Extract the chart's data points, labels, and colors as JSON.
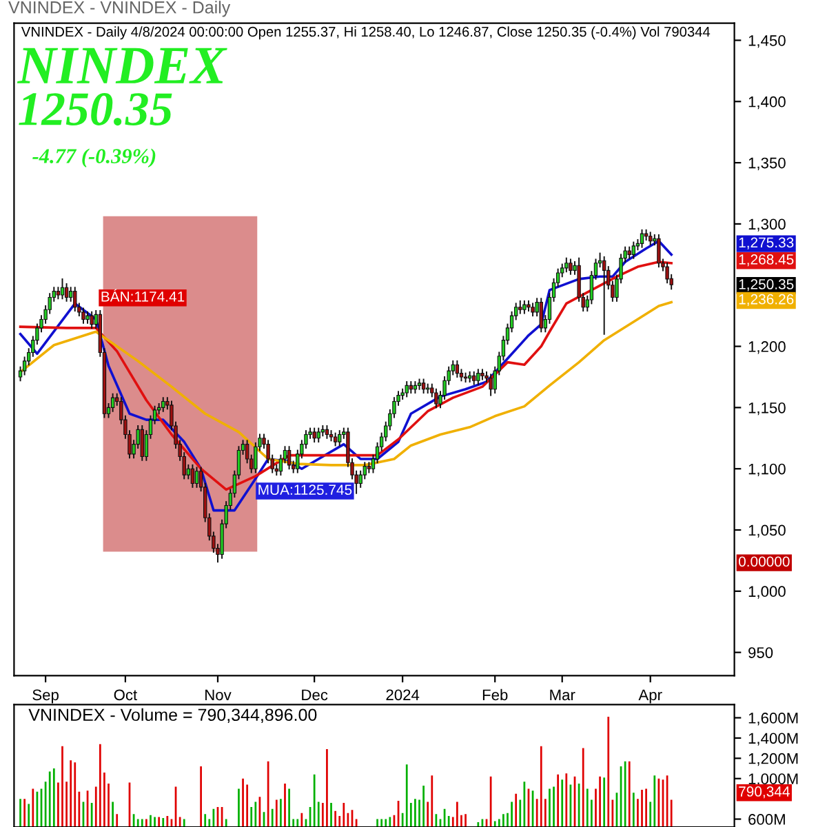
{
  "chart_data": [
    {
      "type": "candlestick",
      "title": "VNINDEX - VNINDEX - Daily",
      "subtitle": "VNINDEX - Daily 4/8/2024 00:00:00 Open 1255.37, Hi 1258.40, Lo 1246.87, Close 1250.35 (-0.4%) Vol 790344",
      "annotations": [
        "NINDEX",
        "1250.35",
        "-4.77 (-0.39%)",
        "BÁN:1174.41",
        "MUA:1125.745",
        "1,275.33",
        "1,268.45",
        "1,250.35",
        "1,236.26",
        "0.00000"
      ],
      "categories": [
        null,
        null,
        null,
        null,
        null,
        null,
        "Sep",
        null,
        null,
        null,
        null,
        null,
        null,
        null,
        null,
        null,
        null,
        null,
        null,
        null,
        null,
        null,
        null,
        null,
        null,
        "Oct",
        null,
        null,
        null,
        null,
        null,
        null,
        null,
        null,
        null,
        null,
        null,
        null,
        null,
        null,
        null,
        null,
        null,
        null,
        null,
        null,
        null,
        "Nov",
        null,
        null,
        null,
        null,
        null,
        null,
        null,
        null,
        null,
        null,
        null,
        null,
        null,
        null,
        null,
        null,
        null,
        null,
        null,
        null,
        null,
        null,
        "Dec",
        null,
        null,
        null,
        null,
        null,
        null,
        null,
        null,
        null,
        null,
        null,
        null,
        null,
        null,
        null,
        null,
        null,
        null,
        null,
        null,
        "2024",
        null,
        null,
        null,
        null,
        null,
        null,
        null,
        null,
        null,
        null,
        null,
        null,
        null,
        null,
        null,
        null,
        null,
        null,
        null,
        null,
        null,
        "Feb",
        null,
        null,
        null,
        null,
        null,
        null,
        null,
        null,
        null,
        null,
        null,
        null,
        null,
        null,
        null,
        "Mar",
        null,
        null,
        null,
        null,
        null,
        null,
        null,
        null,
        null,
        null,
        null,
        null,
        null,
        null,
        null,
        null,
        null,
        null,
        null,
        null,
        "Apr",
        null,
        null,
        null,
        null,
        null
      ],
      "ylim": [
        931,
        1464
      ],
      "yticks": [
        {
          "value": 950,
          "label": "950"
        },
        {
          "value": 1000,
          "label": "1,000"
        },
        {
          "value": 1050,
          "label": "1,050"
        },
        {
          "value": 1100,
          "label": "1,100"
        },
        {
          "value": 1150,
          "label": "1,150"
        },
        {
          "value": 1200,
          "label": "1,200"
        },
        {
          "value": 1300,
          "label": "1,300"
        },
        {
          "value": 1350,
          "label": "1,350"
        },
        {
          "value": 1400,
          "label": "1,400"
        },
        {
          "value": 1450,
          "label": "1,450"
        }
      ],
      "grid": false,
      "series": [
        {
          "type": "candlestick",
          "color": "#111111",
          "ohlc": [
            [
              1175,
              1183,
              1172,
              1180
            ],
            [
              1180,
              1191,
              1177,
              1188
            ],
            [
              1188,
              1198,
              1185,
              1195
            ],
            [
              1195,
              1208,
              1192,
              1205
            ],
            [
              1205,
              1218,
              1202,
              1215
            ],
            [
              1215,
              1225,
              1212,
              1222
            ],
            [
              1222,
              1233,
              1219,
              1230
            ],
            [
              1230,
              1243,
              1227,
              1240
            ],
            [
              1240,
              1248,
              1237,
              1245
            ],
            [
              1245,
              1248,
              1239,
              1242
            ],
            [
              1242,
              1255,
              1239,
              1248
            ],
            [
              1248,
              1251,
              1237,
              1240
            ],
            [
              1240,
              1248,
              1237,
              1245
            ],
            [
              1245,
              1248,
              1229,
              1232
            ],
            [
              1232,
              1235,
              1225,
              1228
            ],
            [
              1228,
              1231,
              1219,
              1222
            ],
            [
              1222,
              1228,
              1219,
              1225
            ],
            [
              1225,
              1228,
              1215,
              1218
            ],
            [
              1218,
              1229,
              1215,
              1226
            ],
            [
              1226,
              1229,
              1192,
              1195
            ],
            [
              1195,
              1198,
              1142,
              1145
            ],
            [
              1145,
              1153,
              1142,
              1150
            ],
            [
              1150,
              1161,
              1147,
              1158
            ],
            [
              1158,
              1161,
              1152,
              1155
            ],
            [
              1155,
              1158,
              1137,
              1140
            ],
            [
              1140,
              1143,
              1125,
              1128
            ],
            [
              1128,
              1131,
              1109,
              1112
            ],
            [
              1112,
              1123,
              1109,
              1120
            ],
            [
              1120,
              1135,
              1117,
              1132
            ],
            [
              1132,
              1135,
              1107,
              1110
            ],
            [
              1110,
              1131,
              1107,
              1128
            ],
            [
              1128,
              1143,
              1125,
              1140
            ],
            [
              1140,
              1151,
              1137,
              1148
            ],
            [
              1148,
              1153,
              1145,
              1150
            ],
            [
              1150,
              1158,
              1147,
              1155
            ],
            [
              1155,
              1158,
              1149,
              1152
            ],
            [
              1152,
              1155,
              1132,
              1135
            ],
            [
              1135,
              1138,
              1117,
              1120
            ],
            [
              1120,
              1123,
              1107,
              1110
            ],
            [
              1110,
              1113,
              1092,
              1095
            ],
            [
              1095,
              1103,
              1092,
              1100
            ],
            [
              1100,
              1103,
              1085,
              1088
            ],
            [
              1088,
              1101,
              1085,
              1098
            ],
            [
              1098,
              1101,
              1082,
              1085
            ],
            [
              1085,
              1088,
              1057,
              1060
            ],
            [
              1060,
              1063,
              1042,
              1045
            ],
            [
              1045,
              1048,
              1032,
              1035
            ],
            [
              1035,
              1038,
              1024,
              1030
            ],
            [
              1030,
              1058,
              1027,
              1055
            ],
            [
              1055,
              1073,
              1052,
              1070
            ],
            [
              1070,
              1083,
              1067,
              1080
            ],
            [
              1080,
              1098,
              1077,
              1095
            ],
            [
              1095,
              1118,
              1092,
              1115
            ],
            [
              1115,
              1123,
              1112,
              1120
            ],
            [
              1120,
              1123,
              1105,
              1108
            ],
            [
              1108,
              1111,
              1097,
              1100
            ],
            [
              1100,
              1121,
              1097,
              1118
            ],
            [
              1118,
              1128,
              1115,
              1125
            ],
            [
              1125,
              1128,
              1117,
              1120
            ],
            [
              1120,
              1123,
              1105,
              1108
            ],
            [
              1108,
              1111,
              1097,
              1100
            ],
            [
              1100,
              1103,
              1095,
              1098
            ],
            [
              1098,
              1111,
              1095,
              1108
            ],
            [
              1108,
              1118,
              1105,
              1115
            ],
            [
              1115,
              1118,
              1100,
              1103
            ],
            [
              1103,
              1106,
              1097,
              1100
            ],
            [
              1100,
              1115,
              1097,
              1112
            ],
            [
              1112,
              1123,
              1109,
              1120
            ],
            [
              1120,
              1131,
              1117,
              1128
            ],
            [
              1128,
              1133,
              1125,
              1130
            ],
            [
              1130,
              1133,
              1122,
              1125
            ],
            [
              1125,
              1133,
              1122,
              1130
            ],
            [
              1130,
              1135,
              1127,
              1132
            ],
            [
              1132,
              1135,
              1125,
              1128
            ],
            [
              1128,
              1131,
              1123,
              1126
            ],
            [
              1126,
              1129,
              1119,
              1122
            ],
            [
              1122,
              1131,
              1119,
              1128
            ],
            [
              1128,
              1133,
              1125,
              1130
            ],
            [
              1130,
              1133,
              1102,
              1105
            ],
            [
              1105,
              1108,
              1092,
              1095
            ],
            [
              1095,
              1098,
              1080,
              1088
            ],
            [
              1088,
              1098,
              1085,
              1095
            ],
            [
              1095,
              1105,
              1092,
              1102
            ],
            [
              1102,
              1105,
              1097,
              1100
            ],
            [
              1100,
              1111,
              1097,
              1108
            ],
            [
              1108,
              1121,
              1105,
              1118
            ],
            [
              1118,
              1129,
              1115,
              1126
            ],
            [
              1126,
              1138,
              1123,
              1135
            ],
            [
              1135,
              1148,
              1132,
              1145
            ],
            [
              1145,
              1158,
              1142,
              1155
            ],
            [
              1155,
              1163,
              1152,
              1160
            ],
            [
              1160,
              1165,
              1157,
              1162
            ],
            [
              1162,
              1171,
              1159,
              1168
            ],
            [
              1168,
              1171,
              1162,
              1165
            ],
            [
              1165,
              1171,
              1162,
              1168
            ],
            [
              1168,
              1173,
              1165,
              1170
            ],
            [
              1170,
              1173,
              1162,
              1165
            ],
            [
              1165,
              1169,
              1162,
              1166
            ],
            [
              1166,
              1169,
              1159,
              1162
            ],
            [
              1162,
              1165,
              1150,
              1153
            ],
            [
              1153,
              1163,
              1150,
              1160
            ],
            [
              1160,
              1175,
              1157,
              1172
            ],
            [
              1172,
              1183,
              1169,
              1180
            ],
            [
              1180,
              1188,
              1177,
              1185
            ],
            [
              1185,
              1188,
              1175,
              1178
            ],
            [
              1178,
              1181,
              1172,
              1175
            ],
            [
              1175,
              1178,
              1171,
              1174
            ],
            [
              1174,
              1179,
              1171,
              1176
            ],
            [
              1176,
              1179,
              1169,
              1172
            ],
            [
              1172,
              1181,
              1169,
              1178
            ],
            [
              1178,
              1181,
              1173,
              1176
            ],
            [
              1176,
              1179,
              1171,
              1174
            ],
            [
              1174,
              1177,
              1160,
              1165
            ],
            [
              1165,
              1183,
              1162,
              1180
            ],
            [
              1180,
              1195,
              1177,
              1192
            ],
            [
              1192,
              1208,
              1189,
              1205
            ],
            [
              1205,
              1218,
              1202,
              1215
            ],
            [
              1215,
              1228,
              1212,
              1225
            ],
            [
              1225,
              1235,
              1222,
              1232
            ],
            [
              1232,
              1237,
              1227,
              1230
            ],
            [
              1230,
              1237,
              1227,
              1234
            ],
            [
              1234,
              1237,
              1229,
              1232
            ],
            [
              1232,
              1235,
              1225,
              1228
            ],
            [
              1228,
              1239,
              1225,
              1236
            ],
            [
              1236,
              1239,
              1212,
              1215
            ],
            [
              1215,
              1225,
              1212,
              1222
            ],
            [
              1222,
              1243,
              1219,
              1240
            ],
            [
              1240,
              1255,
              1237,
              1252
            ],
            [
              1252,
              1263,
              1249,
              1260
            ],
            [
              1260,
              1267,
              1257,
              1264
            ],
            [
              1264,
              1272,
              1261,
              1268
            ],
            [
              1268,
              1271,
              1259,
              1262
            ],
            [
              1262,
              1269,
              1259,
              1266
            ],
            [
              1266,
              1272,
              1237,
              1240
            ],
            [
              1240,
              1243,
              1229,
              1232
            ],
            [
              1232,
              1241,
              1229,
              1238
            ],
            [
              1238,
              1261,
              1235,
              1258
            ],
            [
              1258,
              1271,
              1255,
              1268
            ],
            [
              1268,
              1276,
              1265,
              1270
            ],
            [
              1270,
              1273,
              1210,
              1262
            ],
            [
              1262,
              1265,
              1247,
              1250
            ],
            [
              1250,
              1253,
              1237,
              1240
            ],
            [
              1240,
              1258,
              1237,
              1255
            ],
            [
              1255,
              1275,
              1252,
              1272
            ],
            [
              1272,
              1281,
              1269,
              1278
            ],
            [
              1278,
              1281,
              1272,
              1275
            ],
            [
              1275,
              1285,
              1272,
              1282
            ],
            [
              1282,
              1287,
              1279,
              1284
            ],
            [
              1284,
              1295,
              1281,
              1292
            ],
            [
              1292,
              1295,
              1287,
              1290
            ],
            [
              1290,
              1293,
              1283,
              1286
            ],
            [
              1286,
              1291,
              1283,
              1288
            ],
            [
              1288,
              1291,
              1265,
              1268
            ],
            [
              1268,
              1271,
              1262,
              1265
            ],
            [
              1265,
              1268,
              1252,
              1255
            ],
            [
              1255.37,
              1258.4,
              1246.87,
              1250.35
            ]
          ]
        },
        {
          "type": "line",
          "color": "#1010d0",
          "values": [
            1210,
            null,
            null,
            null,
            1194,
            null,
            null,
            null,
            null,
            null,
            null,
            null,
            null,
            1235,
            null,
            null,
            null,
            null,
            1222,
            null,
            null,
            1184,
            null,
            null,
            null,
            null,
            1145,
            null,
            null,
            null,
            1140,
            null,
            null,
            null,
            1140,
            null,
            null,
            null,
            null,
            1122,
            null,
            null,
            null,
            1100,
            null,
            null,
            1066,
            null,
            null,
            null,
            null,
            1066,
            null,
            null,
            null,
            null,
            1092,
            null,
            null,
            1108,
            null,
            null,
            null,
            null,
            1106,
            null,
            null,
            1100,
            null,
            null,
            null,
            null,
            null,
            null,
            null,
            null,
            null,
            1120,
            null,
            null,
            null,
            1108,
            null,
            null,
            null,
            1108,
            null,
            null,
            null,
            null,
            1122,
            null,
            null,
            1145,
            null,
            null,
            null,
            null,
            null,
            null,
            1159,
            null,
            null,
            null,
            null,
            null,
            1165,
            null,
            null,
            null,
            null,
            1171,
            null,
            null,
            null,
            null,
            1190,
            null,
            null,
            null,
            null,
            1209,
            null,
            null,
            1218,
            null,
            1246,
            null,
            null,
            null,
            null,
            null,
            null,
            1255,
            null,
            null,
            null,
            null,
            1257,
            null,
            null,
            1257,
            null,
            null,
            1269,
            null,
            null,
            null,
            null,
            1280,
            null,
            null,
            1286,
            null,
            null,
            1275
          ]
        },
        {
          "type": "line",
          "color": "#e01010",
          "values": [
            1216,
            null,
            null,
            null,
            null,
            null,
            null,
            null,
            null,
            null,
            null,
            1215,
            null,
            null,
            null,
            null,
            null,
            null,
            1215,
            null,
            null,
            null,
            null,
            1196,
            null,
            null,
            null,
            null,
            null,
            null,
            1156,
            null,
            null,
            null,
            null,
            null,
            1128,
            null,
            null,
            null,
            null,
            null,
            null,
            1100,
            null,
            null,
            null,
            null,
            null,
            1083,
            null,
            null,
            null,
            null,
            null,
            null,
            1094,
            null,
            null,
            null,
            null,
            null,
            null,
            null,
            1111,
            null,
            null,
            null,
            null,
            null,
            null,
            null,
            null,
            null,
            1111,
            null,
            null,
            null,
            null,
            null,
            1111,
            null,
            null,
            null,
            null,
            1111,
            null,
            null,
            null,
            null,
            1124,
            null,
            null,
            null,
            null,
            null,
            null,
            1147,
            null,
            null,
            null,
            null,
            null,
            1158,
            null,
            null,
            null,
            null,
            null,
            null,
            1167,
            null,
            null,
            null,
            null,
            null,
            1187,
            null,
            null,
            null,
            1185,
            null,
            null,
            null,
            1200,
            null,
            1212,
            null,
            null,
            null,
            1235,
            null,
            null,
            null,
            null,
            null,
            1246,
            null,
            null,
            null,
            null,
            null,
            1257,
            null,
            null,
            null,
            null,
            1265,
            null,
            null,
            null,
            null,
            1269,
            null,
            null,
            1268
          ]
        },
        {
          "type": "line",
          "color": "#f0b000",
          "values": [
            1179,
            null,
            null,
            null,
            null,
            null,
            null,
            null,
            1201,
            null,
            null,
            null,
            null,
            null,
            null,
            null,
            null,
            null,
            1212,
            null,
            null,
            null,
            null,
            null,
            null,
            null,
            null,
            null,
            1188,
            null,
            null,
            null,
            null,
            null,
            null,
            null,
            1167,
            null,
            null,
            null,
            null,
            null,
            null,
            null,
            1145,
            null,
            null,
            null,
            null,
            null,
            null,
            null,
            1130,
            null,
            null,
            null,
            null,
            null,
            null,
            1108,
            null,
            null,
            null,
            null,
            null,
            null,
            1104,
            null,
            null,
            null,
            null,
            null,
            null,
            null,
            1103,
            null,
            null,
            null,
            null,
            null,
            null,
            null,
            1103,
            null,
            null,
            null,
            null,
            null,
            null,
            1108,
            null,
            null,
            null,
            1119,
            null,
            null,
            null,
            null,
            null,
            null,
            1128,
            null,
            null,
            null,
            null,
            null,
            null,
            1134,
            null,
            null,
            null,
            null,
            null,
            1143,
            null,
            null,
            null,
            null,
            null,
            null,
            1151,
            null,
            null,
            null,
            null,
            null,
            1168,
            null,
            null,
            null,
            null,
            null,
            null,
            1187,
            null,
            null,
            null,
            null,
            null,
            1205,
            null,
            null,
            null,
            null,
            null,
            null,
            1220,
            null,
            null,
            null,
            null,
            null,
            1233,
            null,
            null,
            1236
          ]
        }
      ]
    },
    {
      "type": "bar",
      "title": "VNINDEX - Volume = 790,344,896.00",
      "tick_labels": "y",
      "grid": false,
      "annotations": [
        "790,344"
      ],
      "categories": [
        null,
        null,
        null,
        null,
        null,
        null,
        null,
        null,
        null,
        null,
        null,
        null,
        null,
        null,
        null,
        null,
        null,
        null,
        null,
        null,
        null,
        null,
        null,
        null,
        null,
        null,
        null,
        null,
        null,
        null,
        null,
        null,
        null,
        null,
        null,
        null,
        null,
        null,
        null,
        null,
        null,
        null,
        null,
        null,
        null,
        null,
        null,
        null,
        null,
        null,
        null,
        null,
        null,
        null,
        null,
        null,
        null,
        null,
        null,
        null,
        null,
        null,
        null,
        null,
        null,
        null,
        null,
        null,
        null,
        null,
        null,
        null,
        null,
        null,
        null,
        null,
        null,
        null,
        null,
        null,
        null,
        null,
        null,
        null,
        null,
        null,
        null,
        null,
        null,
        null,
        null,
        null,
        null,
        null,
        null,
        null,
        null,
        null,
        null,
        null,
        null,
        null,
        null,
        null,
        null,
        null,
        null,
        null,
        null,
        null,
        null,
        null,
        null,
        null,
        null,
        null,
        null,
        null,
        null,
        null,
        null,
        null,
        null,
        null,
        null,
        null,
        null,
        null,
        null,
        null,
        null,
        null,
        null,
        null,
        null,
        null,
        null,
        null,
        null,
        null,
        null,
        null,
        null,
        null,
        null,
        null,
        null,
        null,
        null,
        null,
        null,
        null,
        null,
        null,
        null,
        null
      ],
      "ylim": [
        522,
        1730
      ],
      "yticks": [
        {
          "value": 600,
          "label": "600M"
        },
        {
          "value": 1000,
          "label": "1,000M"
        },
        {
          "value": 1200,
          "label": "1,200M"
        },
        {
          "value": 1400,
          "label": "1,400M"
        },
        {
          "value": 1600,
          "label": "1,600M"
        }
      ],
      "values": [
        800,
        800,
        750,
        900,
        870,
        900,
        970,
        1070,
        1100,
        960,
        1320,
        970,
        1180,
        1160,
        870,
        770,
        880,
        760,
        920,
        1340,
        1060,
        950,
        770,
        650,
        null,
        null,
        960,
        650,
        600,
        600,
        600,
        640,
        620,
        620,
        610,
        630,
        600,
        920,
        620,
        600,
        null,
        null,
        null,
        1120,
        650,
        600,
        700,
        720,
        720,
        600,
        null,
        null,
        900,
        1000,
        940,
        720,
        770,
        820,
        670,
        1170,
        700,
        790,
        800,
        950,
        900,
        600,
        600,
        660,
        600,
        720,
        1040,
        770,
        760,
        1290,
        760,
        680,
        630,
        760,
        660,
        690,
        600,
        null,
        null,
        null,
        null,
        600,
        600,
        600,
        620,
        640,
        780,
        660,
        1140,
        760,
        800,
        790,
        930,
        770,
        1030,
        650,
        600,
        700,
        630,
        620,
        770,
        640,
        650,
        null,
        null,
        570,
        600,
        600,
        1020,
        580,
        600,
        650,
        660,
        770,
        850,
        790,
        970,
        900,
        880,
        800,
        1320,
        800,
        900,
        920,
        1040,
        990,
        1050,
        940,
        1020,
        950,
        1300,
        900,
        790,
        900,
        1020,
        1010,
        1610,
        790,
        860,
        1120,
        1170,
        1170,
        860,
        800,
        890,
        900,
        770,
        1030,
        1000,
        990,
        1030,
        790
      ],
      "colors": [
        "#00b000",
        "#e00000",
        "#00b000",
        "#e00000",
        "#00b000",
        "#00b000",
        "#00b000",
        "#00b000",
        "#00b000",
        "#e00000",
        "#e00000",
        "#e00000",
        "#e00000",
        "#e00000",
        "#e00000",
        "#00b000",
        "#e00000",
        "#00b000",
        "#e00000",
        "#e00000",
        "#e00000",
        "#e00000",
        "#00b000",
        "#e00000",
        "#00b000",
        "#00b000",
        "#e00000",
        "#00b000",
        "#00b000",
        "#00b000",
        "#e00000",
        "#00b000",
        "#00b000",
        "#e00000",
        "#00b000",
        "#e00000",
        "#e00000",
        "#e00000",
        "#e00000",
        "#00b000",
        "#00b000",
        "#00b000",
        "#00b000",
        "#e00000",
        "#00b000",
        "#00b000",
        "#00b000",
        "#e00000",
        "#e00000",
        "#00b000",
        "#00b000",
        "#00b000",
        "#00b000",
        "#e00000",
        "#e00000",
        "#00b000",
        "#00b000",
        "#e00000",
        "#00b000",
        "#e00000",
        "#00b000",
        "#e00000",
        "#00b000",
        "#e00000",
        "#00b000",
        "#00b000",
        "#00b000",
        "#e00000",
        "#00b000",
        "#00b000",
        "#00b000",
        "#00b000",
        "#e00000",
        "#e00000",
        "#00b000",
        "#e00000",
        "#e00000",
        "#e00000",
        "#e00000",
        "#e00000",
        "#e00000",
        "#00b000",
        "#00b000",
        "#00b000",
        "#00b000",
        "#00b000",
        "#00b000",
        "#00b000",
        "#00b000",
        "#e00000",
        "#e00000",
        "#00b000",
        "#00b000",
        "#00b000",
        "#00b000",
        "#00b000",
        "#00b000",
        "#e00000",
        "#e00000",
        "#00b000",
        "#00b000",
        "#00b000",
        "#00b000",
        "#e00000",
        "#e00000",
        "#e00000",
        "#e00000",
        "#00b000",
        "#00b000",
        "#00b000",
        "#00b000",
        "#e00000",
        "#e00000",
        "#00b000",
        "#00b000",
        "#00b000",
        "#00b000",
        "#00b000",
        "#e00000",
        "#00b000",
        "#00b000",
        "#e00000",
        "#00b000",
        "#e00000",
        "#e00000",
        "#e00000",
        "#00b000",
        "#00b000",
        "#e00000",
        "#00b000",
        "#e00000",
        "#00b000",
        "#e00000",
        "#00b000",
        "#e00000",
        "#00b000",
        "#00b000",
        "#e00000",
        "#e00000",
        "#00b000",
        "#e00000",
        "#e00000",
        "#00b000",
        "#00b000",
        "#00b000",
        "#e00000",
        "#00b000",
        "#e00000",
        "#e00000",
        "#e00000",
        "#00b000",
        "#00b000",
        "#e00000",
        "#e00000",
        "#e00000",
        "#e00000"
      ]
    }
  ]
}
